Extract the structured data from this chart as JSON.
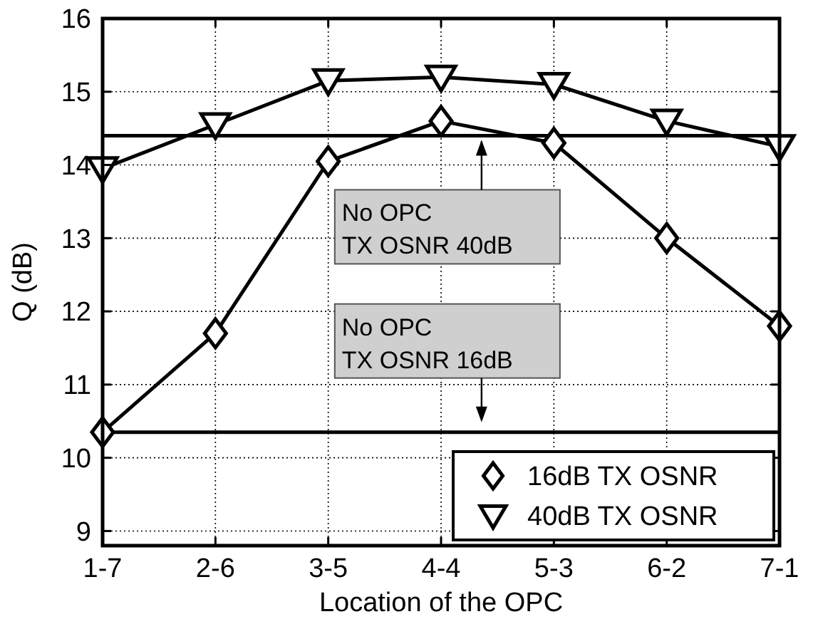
{
  "chart_data": {
    "type": "line",
    "xlabel": "Location of the OPC",
    "ylabel": "Q (dB)",
    "categories": [
      "1-7",
      "2-6",
      "3-5",
      "4-4",
      "5-3",
      "6-2",
      "7-1"
    ],
    "series": [
      {
        "name": "16dB TX OSNR",
        "color": "#000000",
        "marker": "diamond",
        "values": [
          10.35,
          11.7,
          14.05,
          14.6,
          14.3,
          13.0,
          11.8
        ]
      },
      {
        "name": "40dB TX OSNR",
        "color": "#000000",
        "marker": "triangle",
        "values": [
          13.95,
          14.55,
          15.15,
          15.2,
          15.1,
          14.6,
          14.25
        ]
      }
    ],
    "ylim": [
      8.8,
      16
    ],
    "yticks": [
      9,
      10,
      11,
      12,
      13,
      14,
      15,
      16
    ],
    "grid": true,
    "legend": "bottom right",
    "line_style": "solid",
    "ref_lines": [
      {
        "axis": "y",
        "value": 14.4,
        "label": "No OPC\nTX OSNR 40dB",
        "color": "#000000"
      },
      {
        "axis": "y",
        "value": 10.35,
        "label": "No OPC\nTX OSNR 16dB",
        "color": "#000000"
      }
    ]
  }
}
